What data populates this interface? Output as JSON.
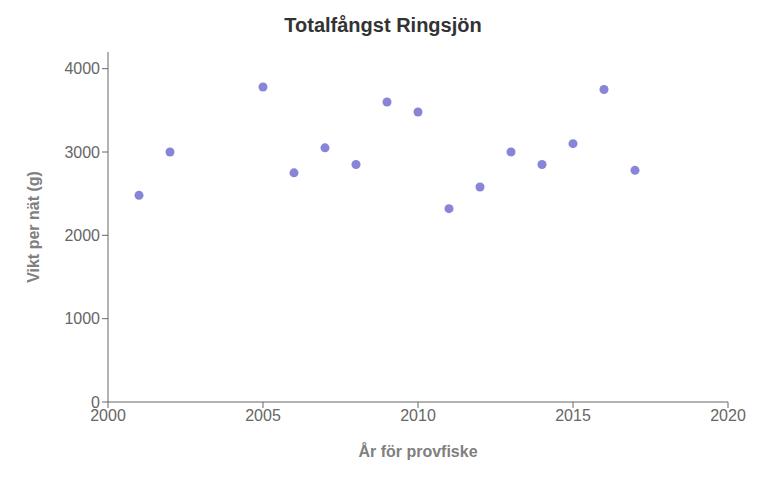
{
  "chart_data": {
    "type": "scatter",
    "title": "Totalfångst  Ringsjön",
    "xlabel": "År för provfiske",
    "ylabel": "Vikt per nät (g)",
    "x": [
      2001,
      2002,
      2005,
      2006,
      2007,
      2008,
      2009,
      2010,
      2011,
      2012,
      2013,
      2014,
      2015,
      2016,
      2017
    ],
    "values": [
      2480,
      3000,
      3780,
      2750,
      3050,
      2850,
      3600,
      3480,
      2320,
      2580,
      3000,
      2850,
      3100,
      3750,
      2780
    ],
    "xlim": [
      2000,
      2020
    ],
    "ylim": [
      0,
      4200
    ],
    "xticks": [
      2000,
      2005,
      2010,
      2015,
      2020
    ],
    "yticks": [
      0,
      1000,
      2000,
      3000,
      4000
    ],
    "grid": false
  }
}
